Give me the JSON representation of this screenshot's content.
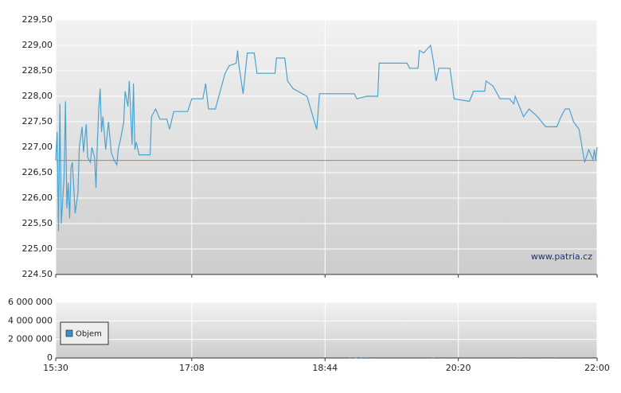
{
  "chart_data": [
    {
      "type": "line",
      "x": [
        930,
        931,
        932,
        933,
        934,
        936,
        937,
        938,
        939,
        940,
        941,
        942,
        944,
        946,
        947,
        949,
        950,
        952,
        953,
        955,
        956,
        958,
        959,
        960,
        961,
        962,
        963,
        964,
        966,
        968,
        970,
        972,
        974,
        975,
        977,
        979,
        980,
        982,
        983,
        985,
        986,
        987,
        988,
        990,
        998,
        999,
        1002,
        1005,
        1010,
        1012,
        1015,
        1025,
        1028,
        1036,
        1038,
        1040,
        1045,
        1052,
        1055,
        1060,
        1061,
        1062,
        1065,
        1068,
        1073,
        1075,
        1088,
        1089,
        1095,
        1097,
        1101,
        1111,
        1118,
        1120,
        1145,
        1147,
        1154,
        1162,
        1163,
        1183,
        1185,
        1191,
        1192,
        1195,
        1200,
        1202,
        1204,
        1206,
        1214,
        1217,
        1228,
        1231,
        1239,
        1240,
        1245,
        1250,
        1257,
        1260,
        1261,
        1264,
        1267,
        1271,
        1277,
        1283,
        1291,
        1294,
        1297,
        1300,
        1303,
        1307,
        1311,
        1314,
        1317,
        1318,
        1319,
        1320
      ],
      "values": [
        226.75,
        227.3,
        225.35,
        227.85,
        225.5,
        226.4,
        227.9,
        225.8,
        226.3,
        225.6,
        226.6,
        226.7,
        225.7,
        226.1,
        227.0,
        227.4,
        226.9,
        227.45,
        226.8,
        226.7,
        227.0,
        226.8,
        226.2,
        227.1,
        227.75,
        228.15,
        227.3,
        227.6,
        226.95,
        227.5,
        226.9,
        226.75,
        226.65,
        226.95,
        227.2,
        227.5,
        228.1,
        227.8,
        228.3,
        227.05,
        228.25,
        226.95,
        227.1,
        226.85,
        226.85,
        227.6,
        227.75,
        227.55,
        227.55,
        227.35,
        227.7,
        227.7,
        227.95,
        227.95,
        228.25,
        227.75,
        227.75,
        228.45,
        228.6,
        228.65,
        228.9,
        228.6,
        228.05,
        228.85,
        228.85,
        228.45,
        228.45,
        228.75,
        228.75,
        228.3,
        228.15,
        228.0,
        227.35,
        228.05,
        228.05,
        227.95,
        228.0,
        228.0,
        228.65,
        228.65,
        228.55,
        228.55,
        228.9,
        228.85,
        229.0,
        228.7,
        228.3,
        228.55,
        228.55,
        227.95,
        227.9,
        228.1,
        228.1,
        228.3,
        228.2,
        227.95,
        227.95,
        227.85,
        228.0,
        227.8,
        227.6,
        227.75,
        227.6,
        227.4,
        227.4,
        227.6,
        227.75,
        227.75,
        227.5,
        227.35,
        226.7,
        226.95,
        226.75,
        226.95,
        226.75,
        227.0
      ],
      "color": "#4aa3d0",
      "reference_line": 226.74,
      "reference_color": "#e06666",
      "xlim": [
        930,
        1320
      ],
      "xticks": [
        930,
        1028,
        1124,
        1220,
        1320
      ],
      "ylim": [
        224.5,
        229.5
      ],
      "yticks": [
        {
          "value": 224.5,
          "label": "224.50"
        },
        {
          "value": 225,
          "label": "225,00"
        },
        {
          "value": 225.5,
          "label": "225,50"
        },
        {
          "value": 226,
          "label": "226,00"
        },
        {
          "value": 226.5,
          "label": "226,50"
        },
        {
          "value": 227,
          "label": "227,00"
        },
        {
          "value": 227.5,
          "label": "227,50"
        },
        {
          "value": 228,
          "label": "228,00"
        },
        {
          "value": 228.5,
          "label": "228,50"
        },
        {
          "value": 229,
          "label": "229,00"
        },
        {
          "value": 229.5,
          "label": "229,50"
        }
      ],
      "grid": true,
      "watermark": "www.patria.cz"
    },
    {
      "type": "bar",
      "x": [
        1142,
        1146,
        1150,
        1154,
        1202,
        1264,
        1290
      ],
      "series": [
        {
          "name": "Objem",
          "color": "#3a8fc8",
          "values": [
            30000,
            40000,
            30000,
            20000,
            30000,
            20000,
            20000
          ]
        }
      ],
      "xlim": [
        930,
        1320
      ],
      "xticks": [
        {
          "value": 930,
          "label": "15:30"
        },
        {
          "value": 1028,
          "label": "17:08"
        },
        {
          "value": 1124,
          "label": "18:44"
        },
        {
          "value": 1220,
          "label": "20:20"
        },
        {
          "value": 1320,
          "label": "22:00"
        }
      ],
      "ylim": [
        0,
        6000000
      ],
      "yticks": [
        {
          "value": 0,
          "label": "0"
        },
        {
          "value": 2000000,
          "label": "2 000 000"
        },
        {
          "value": 4000000,
          "label": "4 000 000"
        },
        {
          "value": 6000000,
          "label": "6 000 000"
        }
      ],
      "grid": true,
      "legend": "left"
    }
  ]
}
